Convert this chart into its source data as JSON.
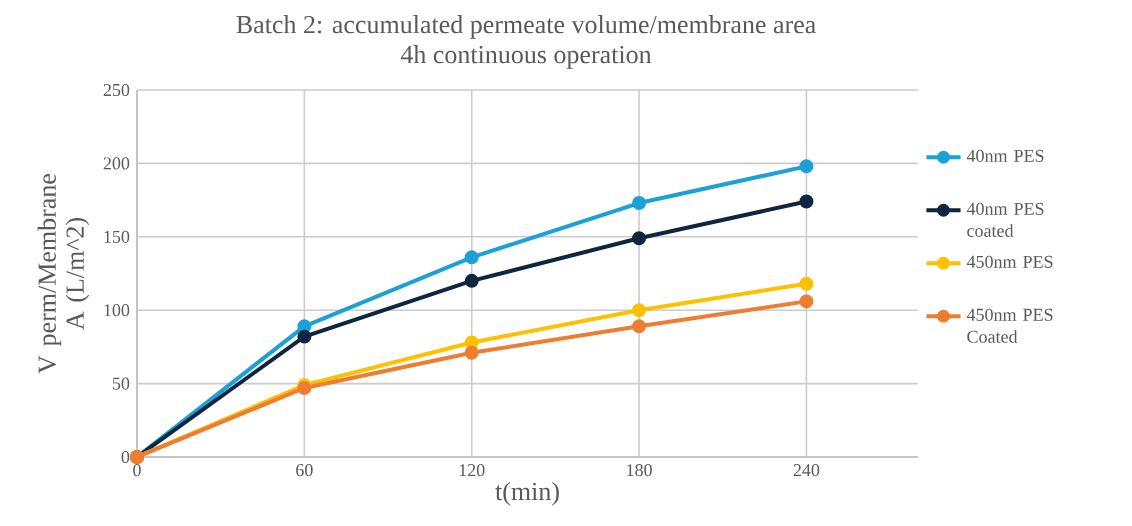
{
  "chart_data": {
    "type": "line",
    "title": "Batch 2: accumulated permeate volume/membrane area",
    "subtitle": "4h continuous operation",
    "xlabel": "t(min)",
    "ylabel": "V perm/Membrane A (L/m^2)",
    "x": [
      0,
      60,
      120,
      180,
      240
    ],
    "series": [
      {
        "name": "40nm PES",
        "color": "#1ba1d8",
        "values": [
          0,
          89,
          136,
          173,
          198
        ]
      },
      {
        "name": "40nm PES coated",
        "color": "#0f2540",
        "values": [
          0,
          82,
          120,
          149,
          174
        ]
      },
      {
        "name": "450nm PES",
        "color": "#ffc000",
        "values": [
          0,
          49,
          78,
          100,
          118
        ]
      },
      {
        "name": "450nm PES Coated",
        "color": "#ed7d31",
        "values": [
          0,
          47,
          71,
          89,
          106
        ]
      }
    ],
    "xlim": [
      0,
      280
    ],
    "ylim": [
      0,
      250
    ],
    "xticks": [
      0,
      60,
      120,
      180,
      240
    ],
    "yticks": [
      0,
      50,
      100,
      150,
      200,
      250
    ],
    "grid": true,
    "legend": "right",
    "marker": "circle",
    "line_style": "solid"
  }
}
